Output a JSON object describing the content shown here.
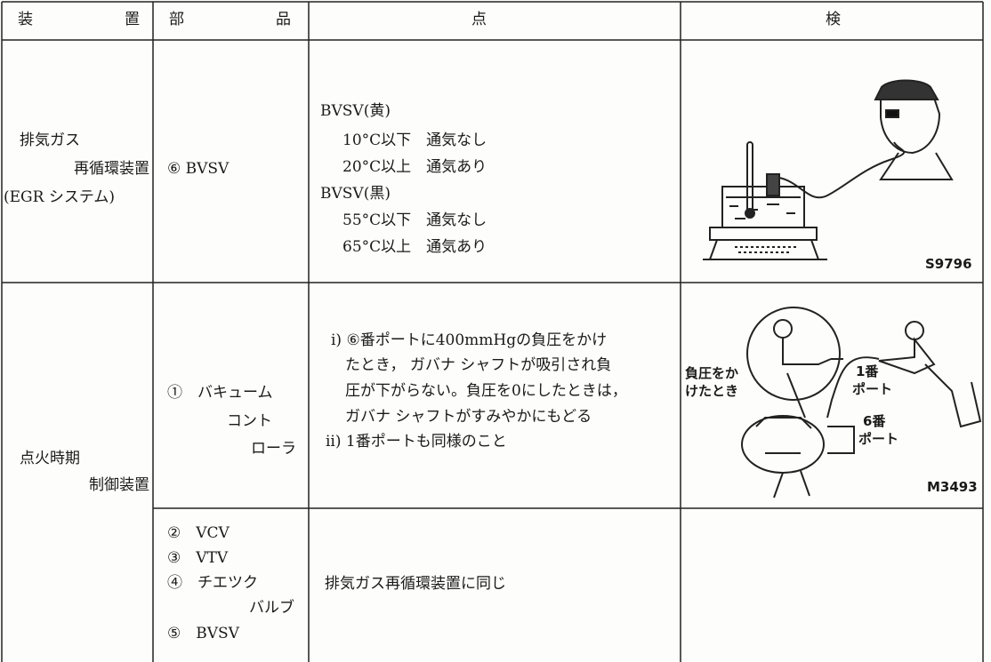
{
  "table": {
    "header": [
      "装",
      "置",
      "部",
      "品",
      "点",
      "検"
    ],
    "rows": [
      {
        "device": [
          "排気ガス",
          "再循環装置",
          "(EGR システム)"
        ],
        "part": [
          "⑥ BVSV"
        ],
        "inspection": [
          "BVSV(黄)",
          "10°C以下　通気なし",
          "20°C以上　通気あり",
          "BVSV(黒)",
          "55°C以下　通気なし",
          "65°C以上　通気あり"
        ],
        "figure": {
          "labels": [],
          "code": "S9796"
        }
      },
      {
        "device": [
          "点火時期",
          "制御装置"
        ],
        "part": [
          "①　バキューム",
          "コント",
          "ローラ"
        ],
        "inspection": [
          "i) ⑥番ポートに400mmHgの負圧をかけ",
          "たとき， ガバナ シャフトが吸引され負",
          "圧が下がらない。負圧を0にしたときは，",
          "ガバナ シャフトがすみやかにもどる",
          "ii) 1番ポートも同様のこと"
        ],
        "figure": {
          "labels": [
            "負圧をか",
            "けたとき",
            "1番",
            "ポート",
            "6番",
            "ポート"
          ],
          "code": "M3493"
        }
      },
      {
        "device": [],
        "part": [
          "②　VCV",
          "③　VTV",
          "④　チエツク",
          "バルブ",
          "⑤　BVSV"
        ],
        "inspection": [
          "排気ガス再循環装置に同じ"
        ],
        "figure": {
          "labels": [],
          "code": null
        }
      }
    ]
  }
}
